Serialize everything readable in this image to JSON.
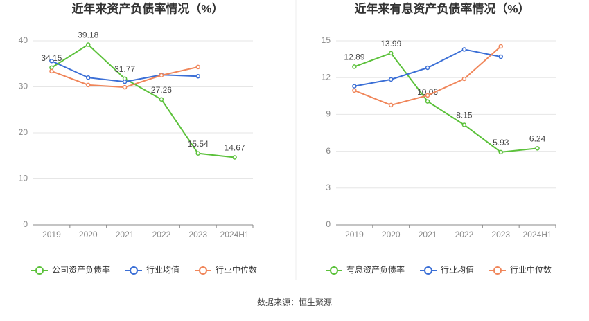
{
  "chart_data": [
    {
      "type": "line",
      "title": "近年来资产负债率情况（%）",
      "categories": [
        "2019",
        "2020",
        "2021",
        "2022",
        "2023",
        "2024H1"
      ],
      "series": [
        {
          "name": "公司资产负债率",
          "color": "#5bc13a",
          "values": [
            34.15,
            39.18,
            31.77,
            27.26,
            15.54,
            14.67
          ],
          "labels": true
        },
        {
          "name": "行业均值",
          "color": "#3b6fd6",
          "values": [
            35.6,
            32.0,
            31.1,
            32.6,
            32.3,
            null
          ]
        },
        {
          "name": "行业中位数",
          "color": "#f0865a",
          "values": [
            33.4,
            30.4,
            29.9,
            32.5,
            34.3,
            null
          ]
        }
      ],
      "ylim": [
        0,
        40
      ],
      "yticks": [
        0,
        10,
        20,
        30,
        40
      ],
      "grid": true
    },
    {
      "type": "line",
      "title": "近年来有息资产负债率情况（%）",
      "categories": [
        "2019",
        "2020",
        "2021",
        "2022",
        "2023",
        "2024H1"
      ],
      "series": [
        {
          "name": "有息资产负债率",
          "color": "#5bc13a",
          "values": [
            12.89,
            13.99,
            10.06,
            8.15,
            5.93,
            6.24
          ],
          "labels": true
        },
        {
          "name": "行业均值",
          "color": "#3b6fd6",
          "values": [
            11.3,
            11.85,
            12.8,
            14.3,
            13.7,
            null
          ]
        },
        {
          "name": "行业中位数",
          "color": "#f0865a",
          "values": [
            10.95,
            9.76,
            10.55,
            11.9,
            14.55,
            null
          ]
        }
      ],
      "ylim": [
        0,
        15
      ],
      "yticks": [
        0,
        3,
        6,
        9,
        12,
        15
      ],
      "grid": true
    }
  ],
  "source": "数据来源：恒生聚源"
}
